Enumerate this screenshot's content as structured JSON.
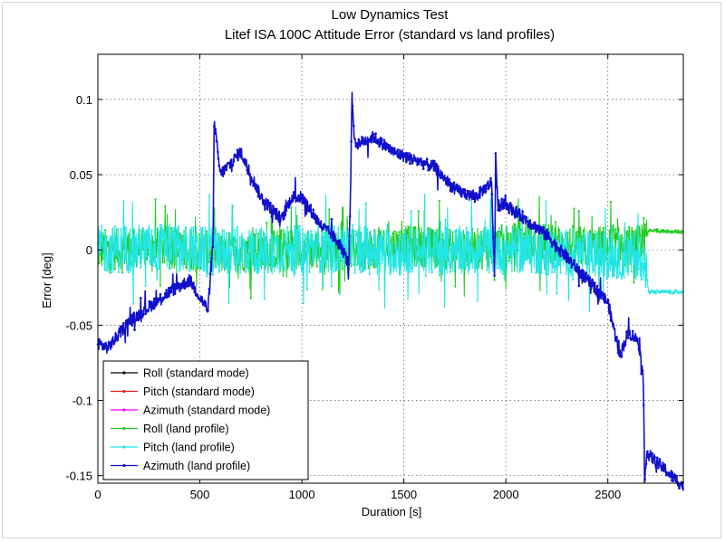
{
  "chart_data": {
    "type": "line",
    "title": "Low Dynamics Test",
    "subtitle": "Litef ISA 100C Attitude Error (standard vs land profiles)",
    "xlabel": "Duration [s]",
    "ylabel": "Error [deg]",
    "xlim": [
      0,
      2870
    ],
    "ylim": [
      -0.155,
      0.13
    ],
    "xticks": [
      0,
      500,
      1000,
      1500,
      2000,
      2500
    ],
    "yticks": [
      -0.15,
      -0.1,
      -0.05,
      0,
      0.05,
      0.1
    ],
    "xtick_labels": [
      "0",
      "500",
      "1000",
      "1500",
      "2000",
      "2500"
    ],
    "ytick_labels": [
      "-0.15",
      "-0.1",
      "-0.05",
      "0",
      "0.05",
      "0.1"
    ],
    "grid": true,
    "legend_position": "bottom-left",
    "series": [
      {
        "name": "Roll (standard mode)",
        "color": "#000000",
        "marker": "dot",
        "x": [],
        "y": []
      },
      {
        "name": "Pitch (standard mode)",
        "color": "#e02020",
        "marker": "dot",
        "x": [],
        "y": []
      },
      {
        "name": "Azimuth (standard mode)",
        "color": "#ff00ff",
        "marker": "dot",
        "x": [],
        "y": []
      },
      {
        "name": "Roll (land profile)",
        "color": "#22cc22",
        "marker": "dot",
        "noise": 0.017,
        "x": [
          0,
          300,
          600,
          900,
          1200,
          1500,
          1800,
          2100,
          2400,
          2680,
          2700,
          2870
        ],
        "y": [
          0,
          0.002,
          -0.002,
          0.001,
          0,
          0.003,
          0,
          0.005,
          0.002,
          0.003,
          0.013,
          0.012
        ]
      },
      {
        "name": "Pitch (land profile)",
        "color": "#22e6e6",
        "marker": "dot",
        "noise": 0.02,
        "x": [
          0,
          300,
          600,
          900,
          1200,
          1500,
          1800,
          2100,
          2400,
          2680,
          2700,
          2870
        ],
        "y": [
          0,
          0.002,
          -0.001,
          0,
          0.001,
          -0.002,
          0,
          0,
          -0.003,
          -0.004,
          -0.028,
          -0.028
        ]
      },
      {
        "name": "Azimuth (land profile)",
        "color": "#1010cc",
        "marker": "dot",
        "noise": 0.004,
        "x": [
          0,
          50,
          150,
          250,
          350,
          450,
          540,
          565,
          570,
          600,
          700,
          800,
          900,
          950,
          1000,
          1100,
          1150,
          1200,
          1230,
          1240,
          1245,
          1260,
          1350,
          1450,
          1550,
          1650,
          1750,
          1850,
          1930,
          1945,
          1950,
          1960,
          2000,
          2100,
          2200,
          2300,
          2400,
          2500,
          2560,
          2600,
          2650,
          2675,
          2680,
          2690,
          2870
        ],
        "y": [
          -0.062,
          -0.065,
          -0.048,
          -0.038,
          -0.028,
          -0.02,
          -0.04,
          0.005,
          0.085,
          0.05,
          0.065,
          0.035,
          0.02,
          0.035,
          0.035,
          0.015,
          0.01,
          0.0,
          -0.01,
          0.05,
          0.103,
          0.07,
          0.075,
          0.065,
          0.06,
          0.055,
          0.04,
          0.035,
          0.045,
          -0.02,
          0.065,
          0.03,
          0.03,
          0.02,
          0.01,
          -0.005,
          -0.02,
          -0.035,
          -0.07,
          -0.055,
          -0.06,
          -0.09,
          -0.152,
          -0.135,
          -0.157
        ]
      }
    ]
  }
}
